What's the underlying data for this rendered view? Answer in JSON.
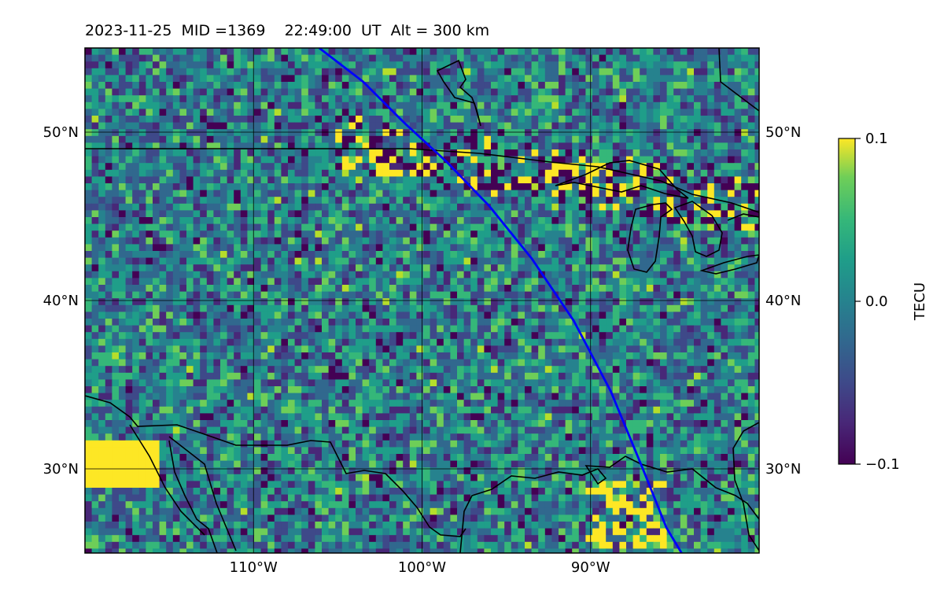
{
  "title": "2023-11-25  MID =1369    22:49:00  UT  Alt = 300 km",
  "map": {
    "lon_range": [
      -120,
      -80
    ],
    "lat_range": [
      25,
      55
    ],
    "lat_ticks": [
      {
        "value": 50,
        "label": "50°N"
      },
      {
        "value": 40,
        "label": "40°N"
      },
      {
        "value": 30,
        "label": "30°N"
      }
    ],
    "lon_ticks": [
      {
        "value": -110,
        "label": "110°W"
      },
      {
        "value": -100,
        "label": "100°W"
      },
      {
        "value": -90,
        "label": "90°W"
      }
    ],
    "colormap": "viridis",
    "track_color": "#0000ff",
    "track": [
      [
        -106.1,
        55
      ],
      [
        -103.5,
        53
      ],
      [
        -101,
        50.5
      ],
      [
        -98.5,
        48.2
      ],
      [
        -96,
        45.6
      ],
      [
        -93.5,
        42.5
      ],
      [
        -91,
        38.8
      ],
      [
        -88.8,
        34.6
      ],
      [
        -86.9,
        30
      ],
      [
        -85.5,
        26.5
      ],
      [
        -84.6,
        25
      ]
    ]
  },
  "colorbar": {
    "label": "TECU",
    "ticks": [
      {
        "value": 0.1,
        "label": "0.1"
      },
      {
        "value": 0.0,
        "label": "0.0"
      },
      {
        "value": -0.1,
        "label": "−0.1"
      }
    ],
    "vmin": -0.1,
    "vmax": 0.1
  }
}
